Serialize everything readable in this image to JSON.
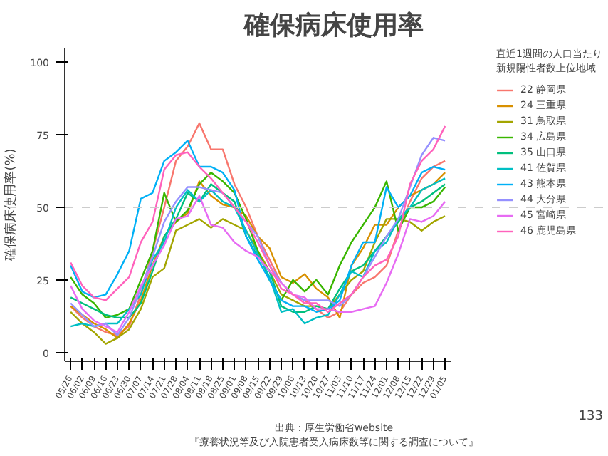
{
  "chart_data": {
    "type": "line",
    "title": "確保病床使用率",
    "ylabel": "確保病床使用率(%)",
    "legend_title": "直近1週間の人口当たり新規陽性者数上位地域",
    "legend": "right",
    "grid": false,
    "marker": "none",
    "line_style": "solid",
    "categories": [
      "05/26",
      "06/02",
      "06/09",
      "06/16",
      "06/23",
      "06/30",
      "07/07",
      "07/14",
      "07/21",
      "07/28",
      "08/04",
      "08/11",
      "08/18",
      "08/25",
      "09/01",
      "09/08",
      "09/15",
      "09/22",
      "09/29",
      "10/06",
      "10/13",
      "10/20",
      "10/27",
      "11/03",
      "11/10",
      "11/17",
      "11/24",
      "12/01",
      "12/08",
      "12/15",
      "12/22",
      "12/29",
      "01/05"
    ],
    "ylim": [
      -3,
      105
    ],
    "yticks": [
      0,
      25,
      50,
      75,
      100
    ],
    "ref_lines": [
      {
        "axis": "y",
        "value": 50,
        "color": "#cccccc",
        "line_style": "dashed"
      }
    ],
    "series": [
      {
        "name": "22 静岡県",
        "color": "#f8766d",
        "values": [
          16,
          12,
          9,
          7,
          6,
          9,
          20,
          35,
          50,
          66,
          71,
          79,
          70,
          70,
          58,
          50,
          40,
          32,
          24,
          20,
          18,
          15,
          12,
          14,
          20,
          24,
          26,
          30,
          42,
          52,
          60,
          64,
          66
        ]
      },
      {
        "name": "24 三重県",
        "color": "#d89000",
        "values": [
          16,
          13,
          10,
          8,
          5,
          10,
          18,
          30,
          40,
          45,
          48,
          59,
          54,
          51,
          50,
          47,
          40,
          36,
          26,
          24,
          27,
          22,
          19,
          12,
          30,
          36,
          44,
          44,
          50,
          54,
          56,
          58,
          62
        ]
      },
      {
        "name": "31 鳥取県",
        "color": "#a3a500",
        "values": [
          14,
          10,
          7,
          3,
          5,
          8,
          15,
          26,
          29,
          42,
          44,
          46,
          43,
          46,
          44,
          42,
          35,
          28,
          20,
          18,
          16,
          16,
          15,
          20,
          25,
          28,
          38,
          46,
          46,
          45,
          42,
          45,
          47
        ]
      },
      {
        "name": "34 広島県",
        "color": "#39b600",
        "values": [
          26,
          20,
          17,
          12,
          13,
          15,
          25,
          35,
          55,
          45,
          49,
          58,
          62,
          59,
          55,
          46,
          35,
          25,
          18,
          25,
          21,
          25,
          20,
          30,
          38,
          44,
          50,
          59,
          42,
          50,
          50,
          52,
          57
        ]
      },
      {
        "name": "35 山口県",
        "color": "#00bf7d",
        "values": [
          19,
          17,
          15,
          13,
          12,
          12,
          17,
          28,
          40,
          46,
          55,
          52,
          58,
          55,
          52,
          40,
          33,
          28,
          16,
          14,
          14,
          16,
          15,
          22,
          28,
          30,
          35,
          40,
          45,
          50,
          52,
          55,
          58
        ]
      },
      {
        "name": "41 佐賀県",
        "color": "#00bfc4",
        "values": [
          9,
          10,
          9,
          10,
          10,
          15,
          20,
          32,
          38,
          50,
          56,
          52,
          56,
          52,
          50,
          42,
          34,
          26,
          14,
          15,
          10,
          12,
          13,
          20,
          28,
          26,
          35,
          38,
          46,
          50,
          56,
          58,
          60
        ]
      },
      {
        "name": "43 熊本県",
        "color": "#00b0f6",
        "values": [
          30,
          21,
          19,
          20,
          27,
          35,
          53,
          55,
          66,
          69,
          73,
          64,
          64,
          62,
          56,
          40,
          32,
          25,
          18,
          16,
          16,
          14,
          15,
          18,
          30,
          38,
          38,
          57,
          50,
          54,
          62,
          64,
          63
        ]
      },
      {
        "name": "44 大分県",
        "color": "#9590ff",
        "values": [
          17,
          13,
          9,
          10,
          6,
          12,
          22,
          33,
          45,
          52,
          57,
          57,
          56,
          55,
          50,
          45,
          40,
          30,
          24,
          20,
          18,
          18,
          18,
          16,
          20,
          26,
          33,
          40,
          46,
          57,
          68,
          74,
          73
        ]
      },
      {
        "name": "45 宮崎県",
        "color": "#e76bf3",
        "values": [
          23,
          15,
          11,
          9,
          7,
          14,
          23,
          30,
          37,
          46,
          47,
          54,
          44,
          43,
          38,
          35,
          33,
          28,
          24,
          20,
          19,
          15,
          15,
          14,
          14,
          15,
          16,
          24,
          34,
          46,
          45,
          47,
          52
        ]
      },
      {
        "name": "46 鹿児島県",
        "color": "#ff62bc",
        "values": [
          31,
          23,
          19,
          18,
          22,
          26,
          38,
          45,
          63,
          68,
          69,
          64,
          60,
          55,
          50,
          45,
          38,
          30,
          22,
          20,
          17,
          17,
          14,
          17,
          20,
          26,
          30,
          32,
          40,
          58,
          66,
          70,
          78
        ]
      }
    ],
    "annotations": [
      "出典：厚生労働省website",
      "『療養状況等及び入院患者受入病床数等に関する調査について』",
      "133"
    ]
  }
}
